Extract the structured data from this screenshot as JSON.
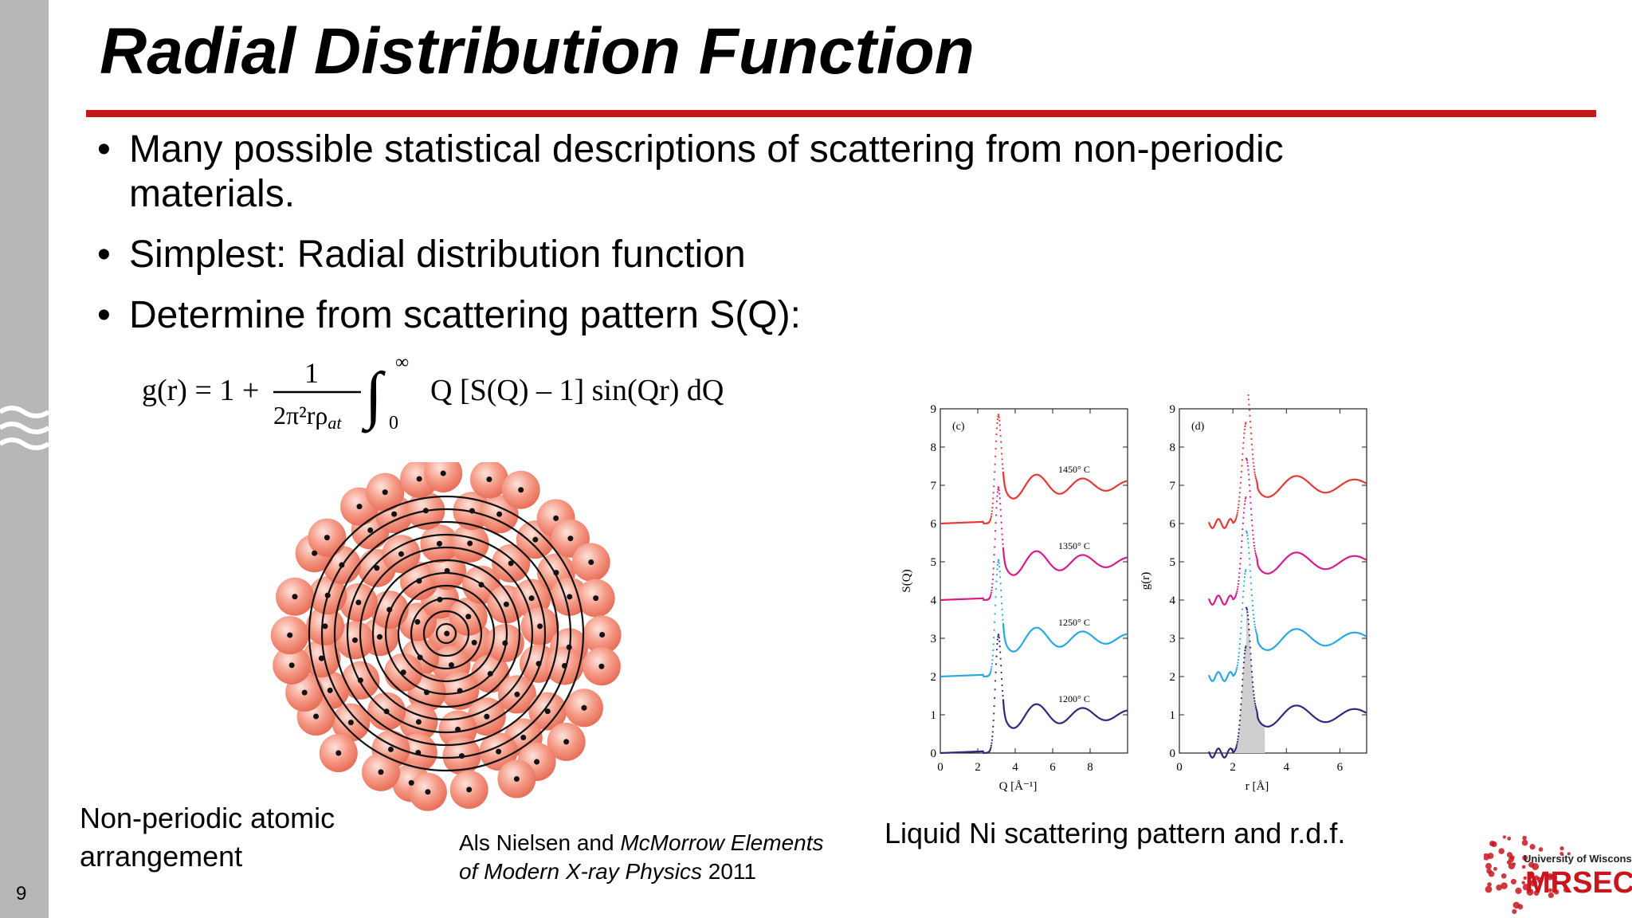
{
  "slide": {
    "title": "Radial Distribution Function",
    "number": "9",
    "accent_color": "#c8161d",
    "sidebar_color": "#b7b7b7"
  },
  "bullets": [
    "Many possible statistical descriptions of scattering from non-periodic materials.",
    "Simplest: Radial distribution function",
    "Determine from scattering pattern S(Q):"
  ],
  "formula": {
    "lhs": "g(r) = 1 +",
    "numerator": "1",
    "denominator": "2π²rρ",
    "denominator_sub": "at",
    "integral_upper": "∞",
    "integral_lower": "0",
    "integrand": "Q [S(Q) – 1] sin(Qr) dQ"
  },
  "captions": {
    "atoms": [
      "Non-periodic atomic",
      "arrangement"
    ],
    "citation_authors": "Als Nielsen and ",
    "citation_title_1": "McMorrow Elements",
    "citation_title_2": "of Modern X-ray Physics",
    "citation_year": " 2011",
    "plots": "Liquid Ni scattering pattern and r.d.f."
  },
  "logo": {
    "top_text": "University of Wisconsin",
    "main_text": "MRSEC",
    "color": "#c8161d"
  },
  "chart_data": [
    {
      "type": "line",
      "panel_label": "(c)",
      "xlabel": "Q [Å⁻¹]",
      "ylabel": "S(Q)",
      "xlim": [
        0,
        10
      ],
      "ylim": [
        0,
        9
      ],
      "xticks": [
        0,
        2,
        4,
        6,
        8
      ],
      "yticks": [
        0,
        1,
        2,
        3,
        4,
        5,
        6,
        7,
        8,
        9
      ],
      "series": [
        {
          "name": "1450° C",
          "color": "#e53935",
          "offset": 6,
          "peak": 8.85
        },
        {
          "name": "1350° C",
          "color": "#d81b8a",
          "offset": 4,
          "peak": 6.95
        },
        {
          "name": "1250° C",
          "color": "#29a8e0",
          "offset": 2,
          "peak": 5.05
        },
        {
          "name": "1200° C",
          "color": "#2e2a7a",
          "offset": 0,
          "peak": 3.1
        }
      ]
    },
    {
      "type": "line",
      "panel_label": "(d)",
      "xlabel": "r [Å]",
      "ylabel": "g(r)",
      "xlim": [
        0,
        7
      ],
      "ylim": [
        0,
        9
      ],
      "xticks": [
        0,
        2,
        4,
        6
      ],
      "yticks": [
        0,
        1,
        2,
        3,
        4,
        5,
        6,
        7,
        8,
        9
      ],
      "series": [
        {
          "color": "#e53935",
          "offset": 6,
          "peak": 8.65
        },
        {
          "color": "#d81b8a",
          "offset": 4,
          "peak": 6.7
        },
        {
          "color": "#29a8e0",
          "offset": 2,
          "peak": 4.8
        },
        {
          "color": "#2e2a7a",
          "offset": 0,
          "peak": 2.8
        }
      ]
    }
  ]
}
